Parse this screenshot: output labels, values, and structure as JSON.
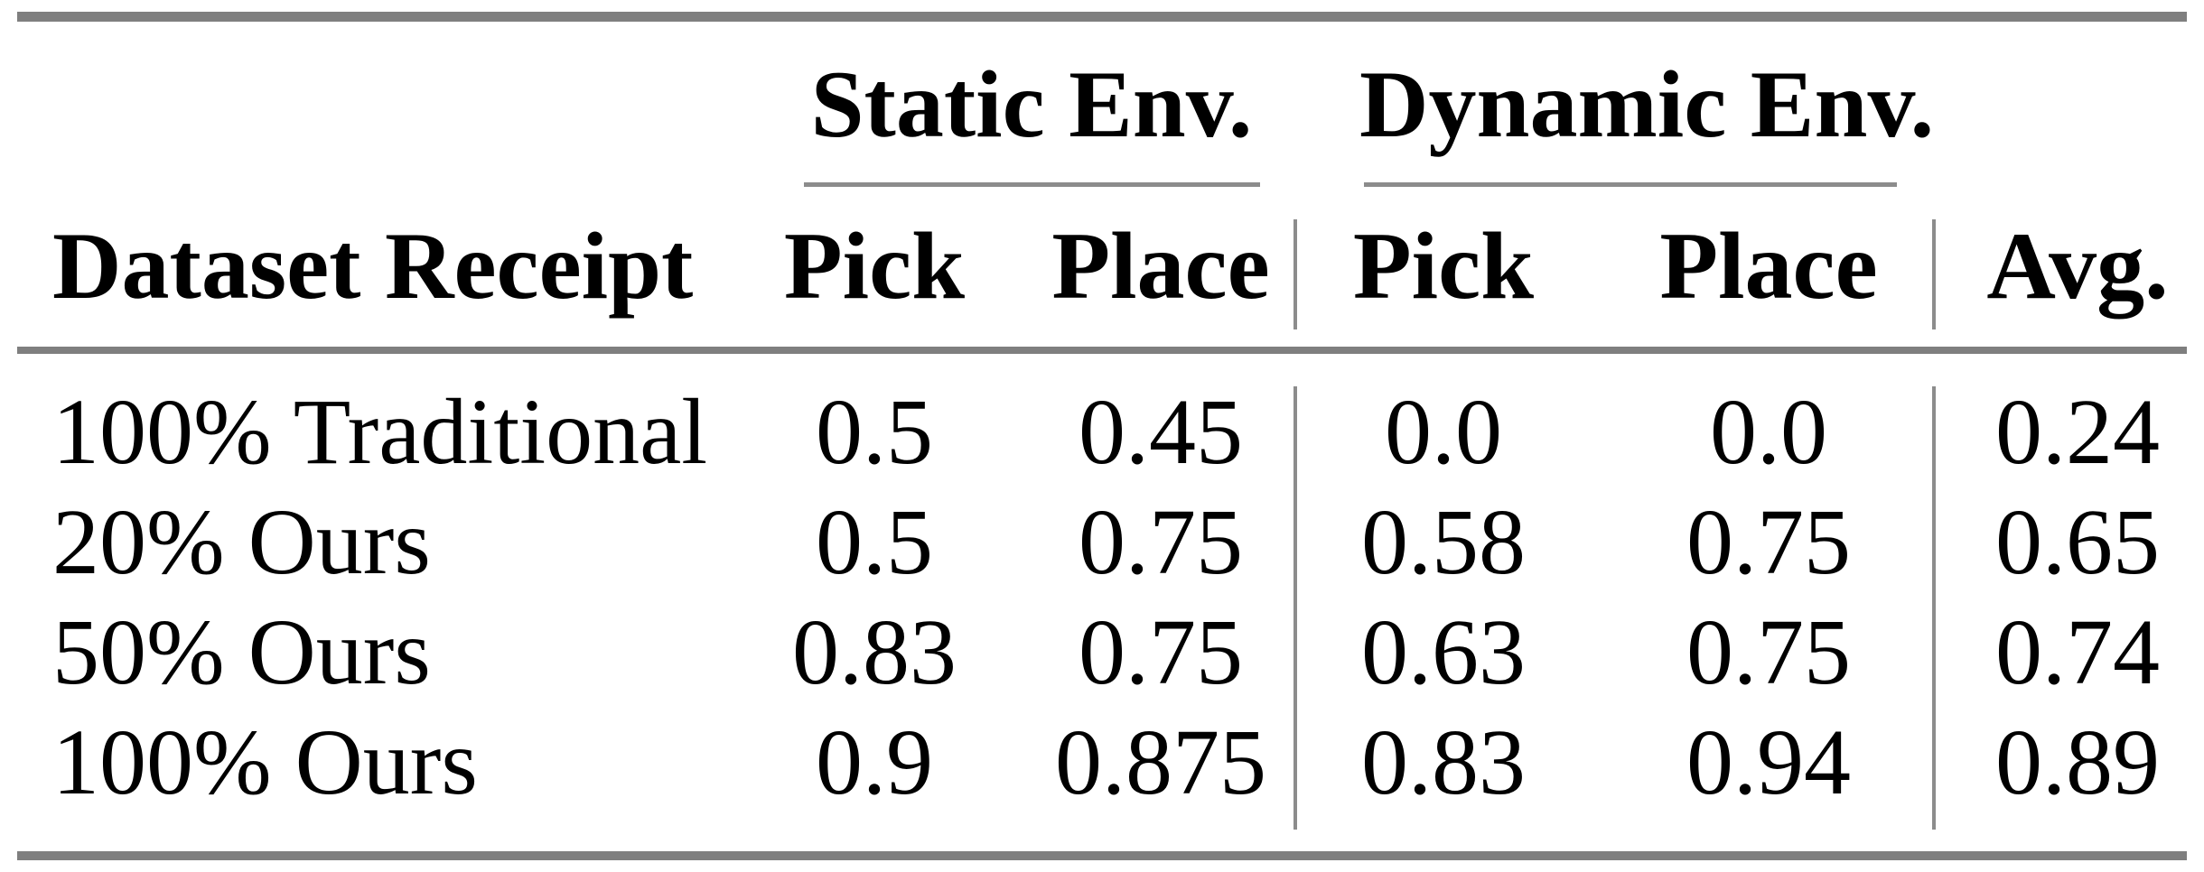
{
  "style": {
    "background": "#ffffff",
    "text_color": "#000000",
    "rule_color": "#7f7f7f",
    "line_color": "#8c8c8c"
  },
  "table": {
    "groups": [
      {
        "label": "Static Env."
      },
      {
        "label": "Dynamic Env."
      }
    ],
    "columns": {
      "row_header": "Dataset Receipt",
      "static_pick": "Pick",
      "static_place": "Place",
      "dynamic_pick": "Pick",
      "dynamic_place": "Place",
      "avg": "Avg."
    },
    "rows": [
      {
        "label": "100% Traditional",
        "static_pick": "0.5",
        "static_place": "0.45",
        "dynamic_pick": "0.0",
        "dynamic_place": "0.0",
        "avg": "0.24"
      },
      {
        "label": "20% Ours",
        "static_pick": "0.5",
        "static_place": "0.75",
        "dynamic_pick": "0.58",
        "dynamic_place": "0.75",
        "avg": "0.65"
      },
      {
        "label": "50% Ours",
        "static_pick": "0.83",
        "static_place": "0.75",
        "dynamic_pick": "0.63",
        "dynamic_place": "0.75",
        "avg": "0.74"
      },
      {
        "label": "100% Ours",
        "static_pick": "0.9",
        "static_place": "0.875",
        "dynamic_pick": "0.83",
        "dynamic_place": "0.94",
        "avg": "0.89"
      }
    ]
  }
}
